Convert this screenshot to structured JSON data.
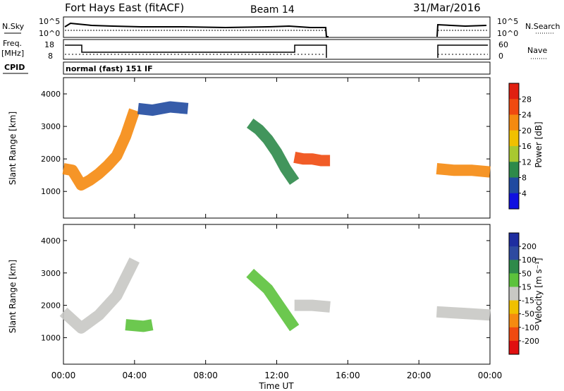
{
  "header": {
    "radar_title": "Fort Hays East (fitACF)",
    "beam": "Beam 14",
    "date": "31/Mar/2016"
  },
  "panels": {
    "nsky_label": "N.Sky",
    "nsky_ticks": [
      "10^5",
      "10^0"
    ],
    "nsearch_label": "N.Search",
    "nsearch_ticks": [
      "10^5",
      "10^0"
    ],
    "freq_label_1": "Freq.",
    "freq_label_2": "[MHz]",
    "freq_ticks": [
      "18",
      "8"
    ],
    "nave_label": "Nave",
    "nave_ticks": [
      "60",
      "0"
    ],
    "cpid_label": "CPID",
    "cpid_text": "normal (fast) 151 IF"
  },
  "power_colorbar": {
    "label": "Power [dB]",
    "ticks": [
      "28",
      "24",
      "20",
      "16",
      "12",
      "8",
      "4"
    ],
    "colors": [
      "#e02010",
      "#f04a10",
      "#f58a10",
      "#f0c000",
      "#a8c830",
      "#2e8a4a",
      "#204aa0",
      "#1010e0"
    ]
  },
  "velocity_colorbar": {
    "label": "Velocity [m s⁻¹]",
    "ticks": [
      "200",
      "100",
      "50",
      "15",
      "-15",
      "-50",
      "-100",
      "-200"
    ],
    "colors": [
      "#1e2da0",
      "#2e4aa0",
      "#2e8a4a",
      "#5cc23c",
      "#c8c8c4",
      "#f0c000",
      "#f58a10",
      "#f04a10",
      "#e01010"
    ]
  },
  "chart_data": [
    {
      "type": "heatmap",
      "title": "",
      "xlabel": "",
      "ylabel": "Slant Range [km]",
      "x_ticks": [
        "00:00",
        "04:00",
        "08:00",
        "12:00",
        "16:00",
        "20:00",
        "00:00"
      ],
      "y_ticks": [
        "4000",
        "3000",
        "2000",
        "1000"
      ],
      "xlim_hours": [
        0,
        24
      ],
      "ylim_km": [
        180,
        4500
      ],
      "colorbar_range_db": [
        0,
        32
      ],
      "features": [
        {
          "name": "band 1",
          "t": [
            0.0,
            0.5,
            1.0,
            1.5,
            2.0,
            2.5,
            3.0,
            3.5,
            4.0
          ],
          "range_km": [
            1700,
            1650,
            1200,
            1350,
            1550,
            1800,
            2100,
            2700,
            3500
          ],
          "power_db": 24
        },
        {
          "name": "band 2",
          "t": [
            4.2,
            5.0,
            6.0,
            7.0
          ],
          "range_km": [
            3550,
            3500,
            3600,
            3550
          ],
          "power_db": 8
        },
        {
          "name": "band 3",
          "t": [
            10.5,
            11.0,
            11.5,
            12.0,
            12.5,
            13.0
          ],
          "range_km": [
            3100,
            2900,
            2600,
            2200,
            1700,
            1300
          ],
          "power_db": 12
        },
        {
          "name": "band 4",
          "t": [
            13.0,
            13.5,
            14.0,
            14.5,
            15.0
          ],
          "range_km": [
            2050,
            2000,
            2000,
            1950,
            1950
          ],
          "power_db": 26
        },
        {
          "name": "band 5",
          "t": [
            21.0,
            22.0,
            23.0,
            24.0
          ],
          "range_km": [
            1700,
            1650,
            1650,
            1600
          ],
          "power_db": 22
        }
      ]
    },
    {
      "type": "heatmap",
      "title": "",
      "xlabel": "Time UT",
      "ylabel": "Slant Range [km]",
      "x_ticks": [
        "00:00",
        "04:00",
        "08:00",
        "12:00",
        "16:00",
        "20:00",
        "00:00"
      ],
      "y_ticks": [
        "4000",
        "3000",
        "2000",
        "1000"
      ],
      "xlim_hours": [
        0,
        24
      ],
      "ylim_km": [
        180,
        4500
      ],
      "colorbar_range_ms": [
        -250,
        250
      ],
      "features": [
        {
          "name": "band 1",
          "t": [
            0.0,
            1.0,
            2.0,
            3.0,
            4.0
          ],
          "range_km": [
            1800,
            1300,
            1700,
            2300,
            3400
          ],
          "velocity_ms": -10
        },
        {
          "name": "band 2",
          "t": [
            3.5,
            4.5,
            5.0
          ],
          "range_km": [
            1400,
            1350,
            1400
          ],
          "velocity_ms": 40
        },
        {
          "name": "band 3",
          "t": [
            10.5,
            11.5,
            12.0,
            13.0
          ],
          "range_km": [
            3000,
            2500,
            2100,
            1300
          ],
          "velocity_ms": 30
        },
        {
          "name": "band 4",
          "t": [
            13.0,
            14.0,
            15.0
          ],
          "range_km": [
            2000,
            2000,
            1950
          ],
          "velocity_ms": 0
        },
        {
          "name": "band 5",
          "t": [
            21.0,
            22.5,
            24.0
          ],
          "range_km": [
            1800,
            1750,
            1700
          ],
          "velocity_ms": 0
        }
      ]
    }
  ]
}
